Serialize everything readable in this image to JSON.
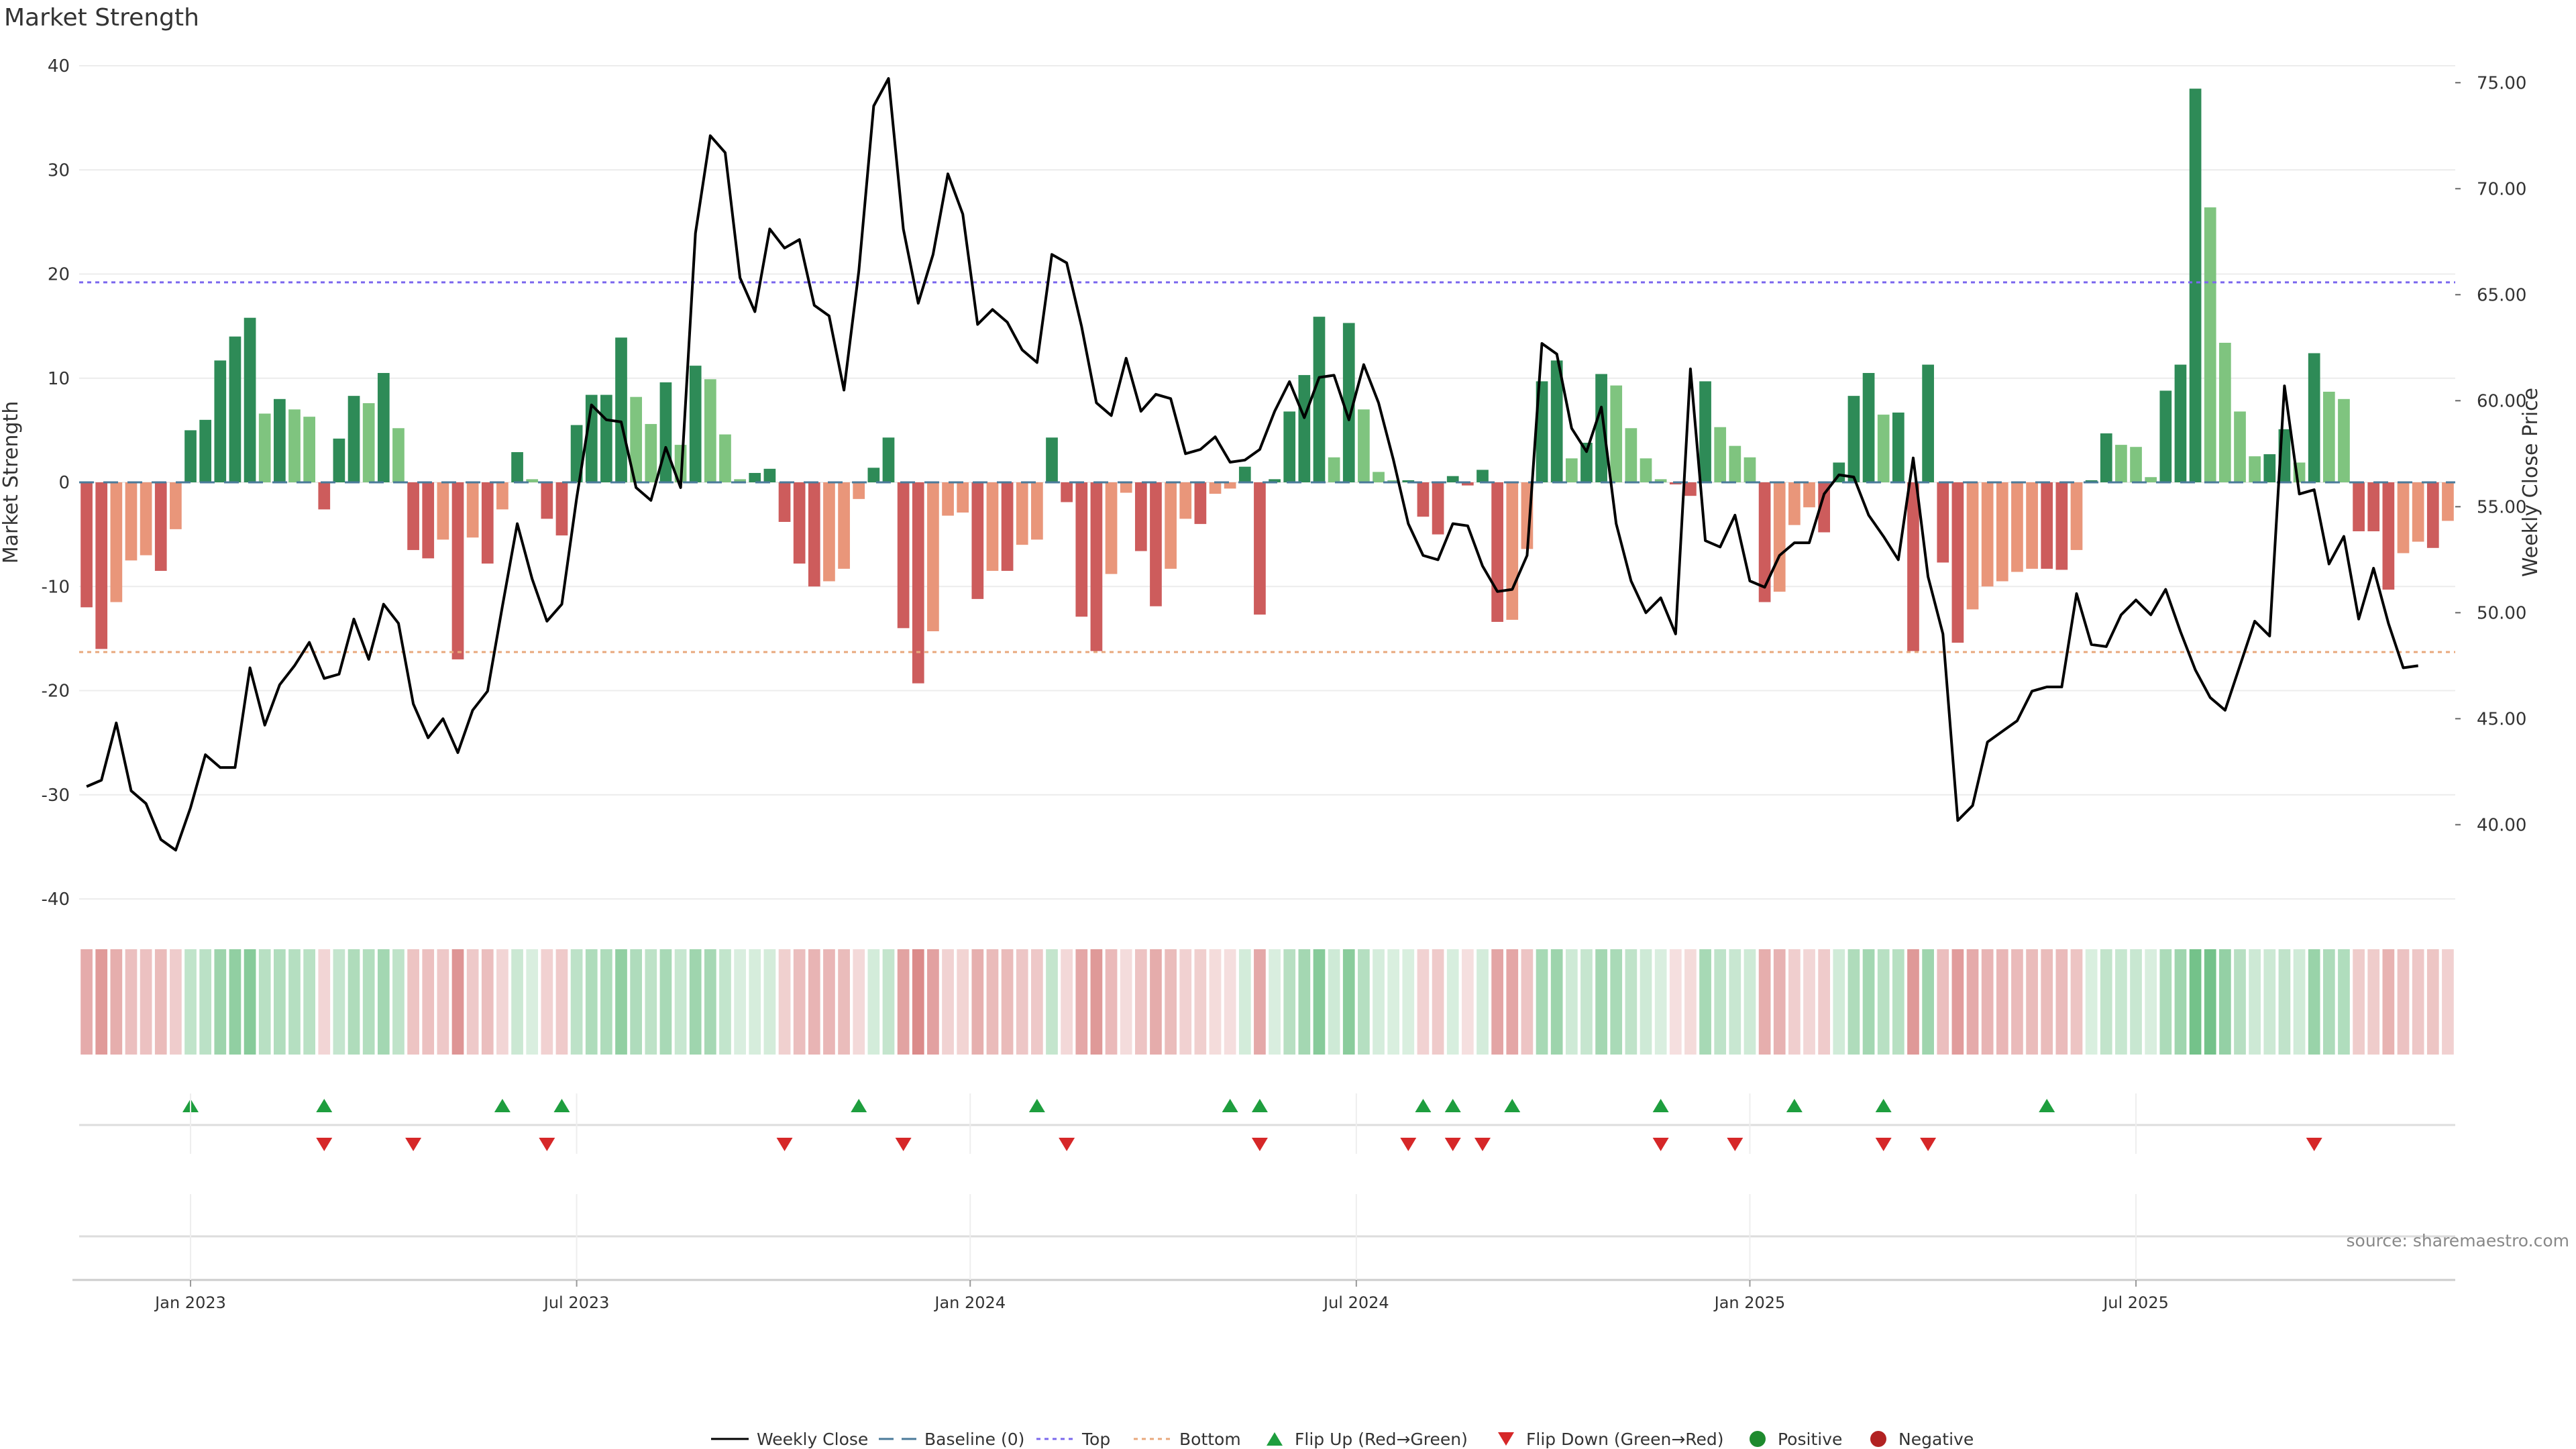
{
  "title": "Market Strength",
  "source_note": "source: sharemaestro.com",
  "colors": {
    "dark_green": "#2e8b57",
    "light_green": "#7fc47f",
    "dark_red": "#cd5c5c",
    "light_red": "#e9967a",
    "baseline": "#4a7a9a",
    "top": "#7b68ee",
    "bottom": "#e8a87c",
    "flip_up": "#1e9e3e",
    "flip_down": "#d62728",
    "close_line": "#000000",
    "positive": "#1e8a2e",
    "negative": "#b22222"
  },
  "chart_data": {
    "type": "bar",
    "ylabel": "Market Strength",
    "y2label": "Weekly Close Price",
    "ylim": [
      -40,
      40
    ],
    "y_ticks": [
      40,
      30,
      20,
      10,
      0,
      -10,
      -20,
      -30,
      -40
    ],
    "y2lim": [
      36.5,
      75.8
    ],
    "y2_ticks": [
      "75.00",
      "70.00",
      "65.00",
      "60.00",
      "55.00",
      "50.00",
      "45.00",
      "40.00"
    ],
    "x_ticks": [
      "Jan 2023",
      "Jul 2023",
      "Jan 2024",
      "Jul 2024",
      "Jan 2025",
      "Jul 2025"
    ],
    "x_tick_weeks": [
      7,
      33,
      59.5,
      85.5,
      112,
      138
    ],
    "top_level": 19.2,
    "bottom_level": -16.3,
    "strength": [
      -12,
      -16,
      -11.5,
      -7.5,
      -7,
      -8.5,
      -4.5,
      5,
      6,
      11.7,
      14,
      15.8,
      6.6,
      8,
      7,
      6.3,
      -2.6,
      4.2,
      8.3,
      7.6,
      10.5,
      5.2,
      -6.5,
      -7.3,
      -5.5,
      -17,
      -5.3,
      -7.8,
      -2.6,
      2.9,
      0.3,
      -3.5,
      -5.1,
      5.5,
      8.4,
      8.4,
      13.9,
      8.2,
      5.6,
      9.6,
      3.6,
      11.2,
      9.9,
      4.6,
      0.3,
      0.9,
      1.3,
      -3.8,
      -7.8,
      -10,
      -9.5,
      -8.3,
      -1.6,
      1.4,
      4.3,
      -14,
      -19.3,
      -14.3,
      -3.2,
      -2.9,
      -11.2,
      -8.5,
      -8.5,
      -6,
      -5.5,
      4.3,
      -1.9,
      -12.9,
      -16.2,
      -8.8,
      -1,
      -6.6,
      -11.9,
      -8.3,
      -3.5,
      -4,
      -1.1,
      -0.6,
      1.5,
      -12.7,
      0.3,
      6.8,
      10.3,
      15.9,
      2.4,
      15.3,
      7,
      1,
      0.2,
      0.2,
      -3.3,
      -5,
      0.6,
      -0.3,
      1.2,
      -13.4,
      -13.2,
      -6.4,
      9.7,
      11.7,
      2.3,
      3.8,
      10.4,
      9.3,
      5.2,
      2.3,
      0.3,
      -0.2,
      -1.3,
      9.7,
      5.3,
      3.5,
      2.4,
      -11.5,
      -10.5,
      -4.1,
      -2.4,
      -4.8,
      1.9,
      8.3,
      10.5,
      6.5,
      6.7,
      -16.2,
      11.3,
      -7.7,
      -15.4,
      -12.2,
      -10,
      -9.5,
      -8.6,
      -8.3,
      -8.3,
      -8.4,
      -6.5,
      0.2,
      4.7,
      3.6,
      3.4,
      0.5,
      8.8,
      11.3,
      37.8,
      26.4,
      13.4,
      6.8,
      2.5,
      2.7,
      5.1,
      1.9,
      12.4,
      8.7,
      8,
      -4.7,
      -4.7,
      -10.3,
      -6.8,
      -5.7,
      -6.3,
      -3.7
    ],
    "weekly_close": [
      41.8,
      42.1,
      44.8,
      41.6,
      41,
      39.3,
      38.8,
      40.8,
      43.3,
      42.7,
      42.7,
      47.4,
      44.7,
      46.6,
      47.5,
      48.6,
      46.9,
      47.1,
      49.7,
      47.8,
      50.4,
      49.5,
      45.7,
      44.1,
      45,
      43.4,
      45.4,
      46.3,
      50.3,
      54.2,
      51.6,
      49.6,
      50.4,
      55.4,
      59.8,
      59.1,
      59,
      55.9,
      55.3,
      57.8,
      55.9,
      67.9,
      72.5,
      71.7,
      65.8,
      64.2,
      68.1,
      67.2,
      67.6,
      64.5,
      64,
      60.5,
      66.1,
      73.9,
      75.2,
      68.1,
      64.6,
      66.9,
      70.7,
      68.8,
      63.6,
      64.3,
      63.7,
      62.4,
      61.8,
      66.9,
      66.5,
      63.5,
      59.9,
      59.3,
      62,
      59.5,
      60.3,
      60.1,
      57.5,
      57.7,
      58.3,
      57.1,
      57.2,
      57.7,
      59.5,
      60.9,
      59.2,
      61.1,
      61.2,
      59.1,
      61.7,
      59.9,
      57.2,
      54.2,
      52.7,
      52.5,
      54.2,
      54.1,
      52.2,
      51,
      51.1,
      52.7,
      62.7,
      62.2,
      58.7,
      57.6,
      59.7,
      54.2,
      51.5,
      50,
      50.7,
      49,
      61.5,
      53.4,
      53.1,
      54.6,
      51.5,
      51.2,
      52.7,
      53.3,
      53.3,
      55.6,
      56.5,
      56.4,
      54.6,
      53.6,
      52.5,
      57.3,
      51.7,
      49,
      40.2,
      40.9,
      43.9,
      44.4,
      44.9,
      46.3,
      46.5,
      46.5,
      50.9,
      48.5,
      48.4,
      49.9,
      50.6,
      49.9,
      51.1,
      49.1,
      47.3,
      46,
      45.4,
      47.5,
      49.6,
      48.9,
      60.7,
      55.6,
      55.8,
      52.3,
      53.6,
      49.7,
      52.1,
      49.5,
      47.4,
      47.5
    ],
    "flip_up_weeks": [
      7,
      16,
      28,
      32,
      52,
      64,
      77,
      79,
      90,
      92,
      96,
      106,
      115,
      121,
      132
    ],
    "flip_down_weeks": [
      16,
      22,
      31,
      47,
      55,
      66,
      79,
      89,
      92,
      94,
      106,
      111,
      121,
      124,
      150
    ],
    "legend": [
      "Weekly Close",
      "Baseline (0)",
      "Top",
      "Bottom",
      "Flip Up (Red→Green)",
      "Flip Down (Green→Red)",
      "Positive",
      "Negative"
    ]
  }
}
